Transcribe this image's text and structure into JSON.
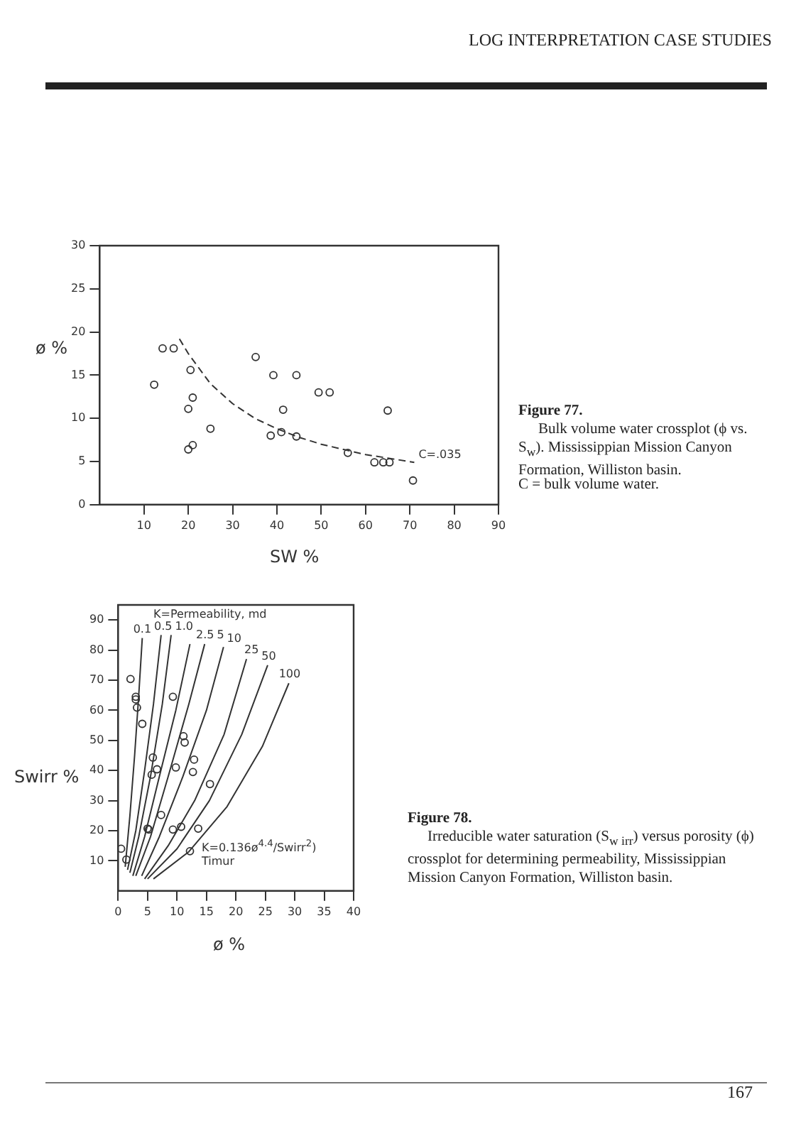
{
  "chart_data": [
    {
      "type": "scatter",
      "xlabel": "SW %",
      "ylabel": "ø %",
      "annotations": [
        "Figure 77.",
        "Bulk volume water crossplot (ϕ vs. S$_{w}$). Mississippian Mission Canyon Formation, Williston basin.",
        "C = bulk volume water.",
        "LOG INTERPRETATION CASE STUDIES"
      ],
      "xlim": [
        0,
        90
      ],
      "xticks": [
        10,
        20,
        30,
        40,
        50,
        60,
        70,
        80,
        90
      ],
      "ylim": [
        0,
        30
      ],
      "yticks": [
        0,
        5,
        10,
        15,
        20,
        25,
        30
      ],
      "grid": false,
      "legend": false,
      "marker": "circle",
      "series": [
        {
          "color": "#333333",
          "x": [
            12.3,
            14.2,
            16.7,
            20.5,
            21,
            20,
            25,
            20,
            21,
            35.2,
            39.2,
            44.4,
            49.4,
            51.9,
            41.4,
            38.6,
            41,
            44.4,
            56,
            62,
            64,
            65.4,
            65,
            70.7
          ],
          "values": [
            13.9,
            18.1,
            18.1,
            15.6,
            12.4,
            11.1,
            8.8,
            6.4,
            6.9,
            17.1,
            15,
            15,
            13,
            13,
            11,
            8,
            8.4,
            7.9,
            6,
            4.9,
            4.9,
            4.9,
            10.9,
            2.8
          ]
        },
        {
          "name": "C=.035",
          "type": "line",
          "line_style": "dashed",
          "marker": "none",
          "color": "#333333",
          "x": [
            18,
            20,
            25,
            30,
            35,
            40,
            45,
            50,
            55,
            60,
            65,
            71
          ],
          "values": [
            19.2,
            17.5,
            14,
            11.7,
            10,
            8.8,
            7.8,
            7,
            6.4,
            5.8,
            5.4,
            4.9
          ]
        }
      ]
    },
    {
      "type": "scatter",
      "xlabel": "ø %",
      "ylabel": "Swirr %",
      "annotations": [
        "Figure 78.",
        "Irreducible water saturation (S$_{w irr}$) versus porosity (ϕ) crossplot for determining permeability, Mississippian Mission Canyon Formation, Williston basin.",
        "K=Permeability, md",
        "K=0.136ø$^{4.4}$/Swirr$^{2}$)",
        "Timur",
        "167"
      ],
      "xlim": [
        0,
        40
      ],
      "xticks": [
        0,
        5,
        10,
        15,
        20,
        25,
        30,
        35,
        40
      ],
      "ylim": [
        0,
        95
      ],
      "yticks": [
        10,
        20,
        30,
        40,
        50,
        60,
        70,
        80,
        90
      ],
      "grid": false,
      "legend": false,
      "marker": "circle",
      "series": [
        {
          "color": "#333333",
          "x": [
            2.1,
            3,
            3,
            3.2,
            4.1,
            5.9,
            5.7,
            6.6,
            9.3,
            11.1,
            11.3,
            9.8,
            12.9,
            12.7,
            15.6,
            7.3,
            5,
            5.2,
            9.3,
            10.7,
            13.6,
            12.2,
            1.4,
            0.5
          ],
          "values": [
            70.4,
            64.5,
            63.6,
            60.9,
            55.5,
            44.3,
            38.6,
            40.4,
            64.5,
            51.4,
            49.3,
            41,
            43.6,
            39.5,
            35.5,
            25.2,
            20.7,
            20.4,
            20.4,
            21.3,
            20.7,
            13.2,
            10.4,
            14
          ]
        },
        {
          "name": "0.1",
          "type": "line",
          "marker": "none",
          "color": "#333333",
          "x": [
            1.2,
            2,
            2.8,
            3.5,
            4.1
          ],
          "values": [
            8,
            25,
            45,
            65,
            84
          ]
        },
        {
          "name": "0.5",
          "type": "line",
          "marker": "none",
          "color": "#333333",
          "x": [
            1.6,
            3,
            4.5,
            6,
            7.3
          ],
          "values": [
            7,
            20,
            40,
            62,
            85
          ]
        },
        {
          "name": "1.0",
          "type": "line",
          "marker": "none",
          "color": "#333333",
          "x": [
            2,
            3.5,
            5.5,
            7.5,
            9
          ],
          "values": [
            6,
            18,
            38,
            62,
            85
          ]
        },
        {
          "name": "2.5",
          "type": "line",
          "marker": "none",
          "color": "#333333",
          "x": [
            2.5,
            4.5,
            7,
            9.8,
            12.2
          ],
          "values": [
            5,
            18,
            38,
            60,
            82
          ]
        },
        {
          "name": "5",
          "type": "line",
          "marker": "none",
          "color": "#333333",
          "x": [
            3,
            5.5,
            8.5,
            12,
            14.7
          ],
          "values": [
            5,
            18,
            38,
            62,
            82
          ]
        },
        {
          "name": "10",
          "type": "line",
          "marker": "none",
          "color": "#333333",
          "x": [
            4,
            7,
            11,
            15,
            17.9
          ],
          "values": [
            5,
            18,
            38,
            60,
            81
          ]
        },
        {
          "name": "25",
          "type": "line",
          "marker": "none",
          "color": "#333333",
          "x": [
            4.5,
            8.5,
            13,
            18,
            21.8
          ],
          "values": [
            4,
            15,
            30,
            52,
            77
          ]
        },
        {
          "name": "50",
          "type": "line",
          "marker": "none",
          "color": "#333333",
          "x": [
            5,
            10,
            15.5,
            21,
            25.4
          ],
          "values": [
            4,
            14,
            30,
            52,
            75
          ]
        },
        {
          "name": "100",
          "type": "line",
          "marker": "none",
          "color": "#333333",
          "x": [
            6,
            12,
            18.5,
            24.5,
            29
          ],
          "values": [
            4,
            13,
            28,
            48,
            69
          ]
        }
      ]
    }
  ]
}
